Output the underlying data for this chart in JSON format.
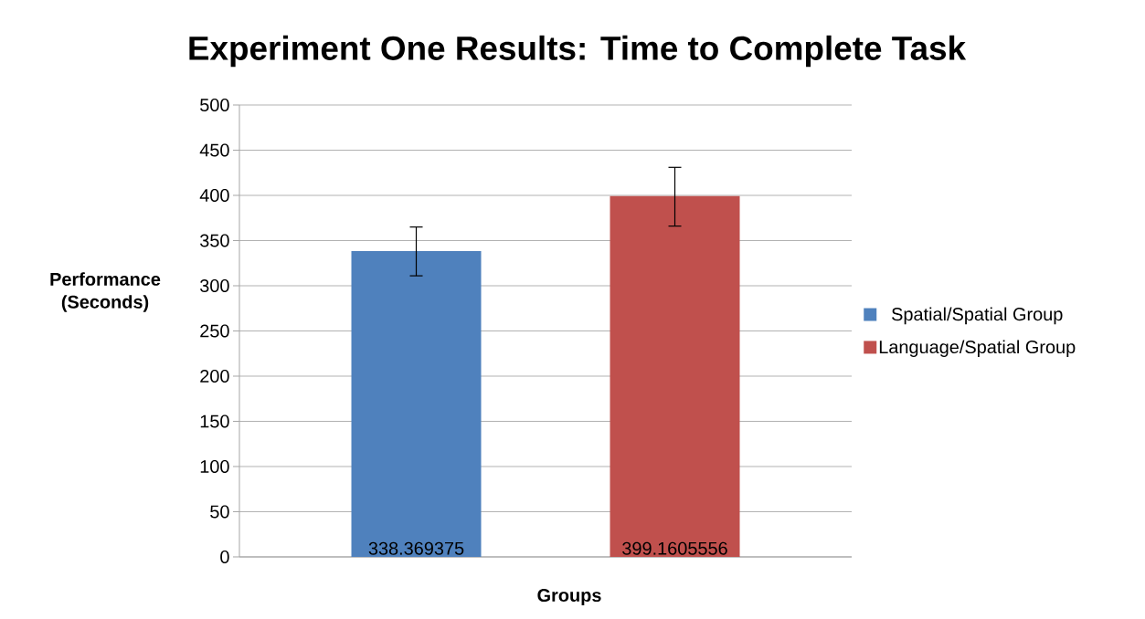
{
  "chart_data": {
    "type": "bar",
    "title": "Experiment One Results: Time to Complete Task",
    "xlabel": "Groups",
    "ylabel": "Performance (Seconds)",
    "categories": [
      null
    ],
    "series": [
      {
        "name": "Spatial/Spatial Group",
        "color": "#4f81bd",
        "values": [
          338.369375
        ],
        "errors": [
          [
            311,
            365
          ]
        ]
      },
      {
        "name": "Language/Spatial Group",
        "color": "#c0504d",
        "values": [
          399.1605556
        ],
        "errors": [
          [
            366,
            431
          ]
        ]
      }
    ],
    "ylim": [
      0,
      500
    ],
    "yticks": [
      0,
      50,
      100,
      150,
      200,
      250,
      300,
      350,
      400,
      450,
      500
    ],
    "grid": "y",
    "legend": "right",
    "data_labels": true
  }
}
